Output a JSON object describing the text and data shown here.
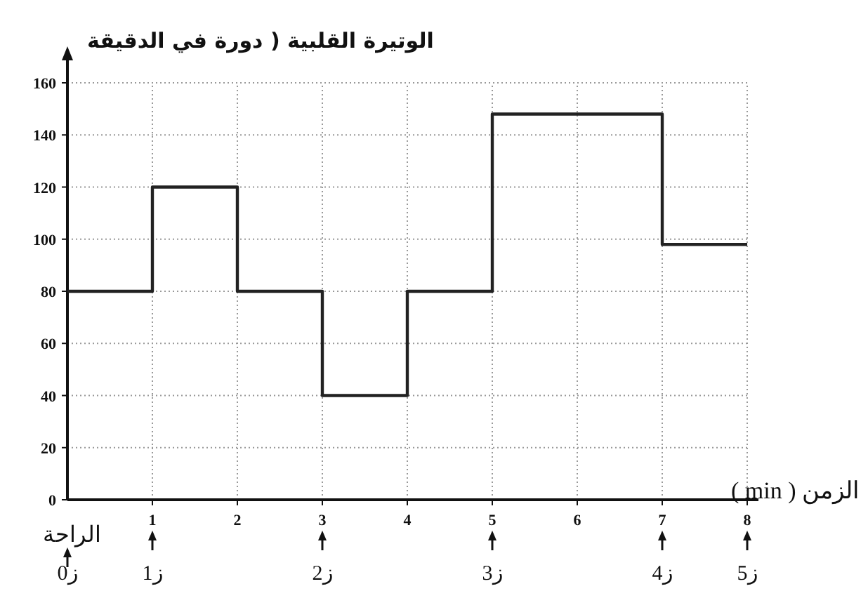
{
  "chart_data": {
    "type": "step",
    "ylabel": "الوتيرة القلبية ( دورة في الدقيقة",
    "xlabel": "الزمن ( min )",
    "x": [
      0,
      1,
      2,
      3,
      4,
      5,
      7,
      8
    ],
    "values": [
      80,
      120,
      80,
      40,
      80,
      148,
      98,
      98
    ],
    "color": "#222222",
    "xlim": [
      0,
      8
    ],
    "ylim": [
      0,
      160
    ],
    "xticks": [
      1,
      2,
      3,
      4,
      5,
      6,
      7,
      8
    ],
    "yticks": [
      0,
      20,
      40,
      60,
      80,
      100,
      120,
      140,
      160
    ],
    "grid": true,
    "line_style": "solid",
    "annotations": [
      {
        "text": "الراحة",
        "x": 0
      },
      "ز0",
      {
        "text": "ز1",
        "x": 1
      },
      {
        "text": "ز2",
        "x": 3
      },
      {
        "text": "ز3",
        "x": 5
      },
      {
        "text": "ز4",
        "x": 7
      },
      {
        "text": "ز5",
        "x": 8
      }
    ]
  }
}
